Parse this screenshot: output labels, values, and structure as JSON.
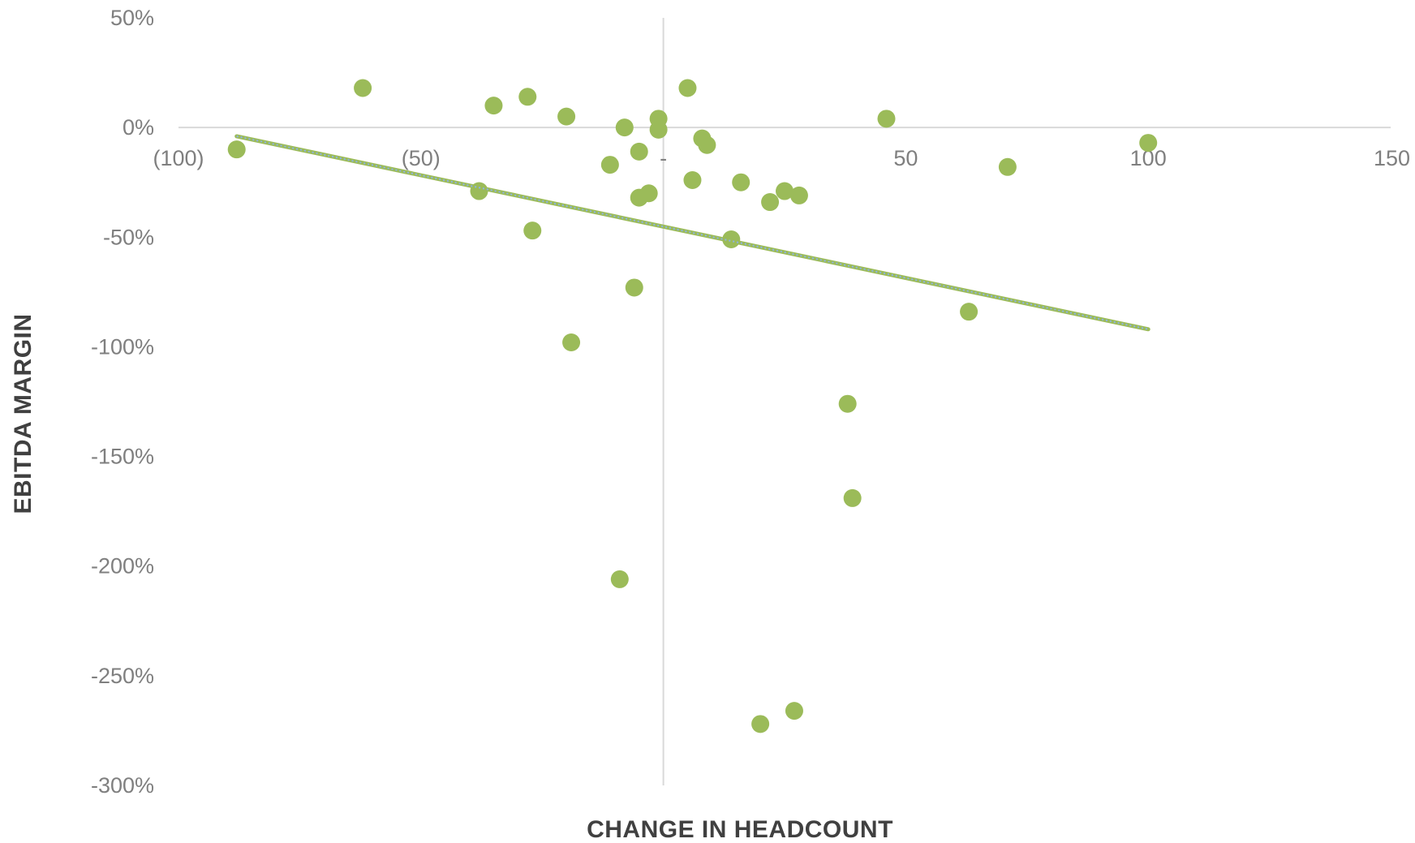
{
  "chart_data": {
    "type": "scatter",
    "title": "",
    "xlabel": "CHANGE IN HEADCOUNT",
    "ylabel": "EBITDA MARGIN",
    "xlim": [
      -100,
      150
    ],
    "ylim": [
      -300,
      50
    ],
    "x_ticks": [
      {
        "value": -100,
        "label": "(100)"
      },
      {
        "value": -50,
        "label": "(50)"
      },
      {
        "value": 0,
        "label": "-"
      },
      {
        "value": 50,
        "label": "50"
      },
      {
        "value": 100,
        "label": "100"
      },
      {
        "value": 150,
        "label": "150"
      }
    ],
    "y_ticks": [
      {
        "value": 50,
        "label": "50%"
      },
      {
        "value": 0,
        "label": "0%"
      },
      {
        "value": -50,
        "label": "-50%"
      },
      {
        "value": -100,
        "label": "-100%"
      },
      {
        "value": -150,
        "label": "-150%"
      },
      {
        "value": -200,
        "label": "-200%"
      },
      {
        "value": -250,
        "label": "-250%"
      },
      {
        "value": -300,
        "label": "-300%"
      }
    ],
    "grid": false,
    "legend": "none",
    "point_color": "#9bbb59",
    "trendline_color": "#9bbb59",
    "trendline_inner_color": "#8db3e2",
    "trendline": {
      "x1": -88,
      "y1": -4,
      "x2": 100,
      "y2": -92
    },
    "points": [
      {
        "x": -88,
        "y": -10
      },
      {
        "x": -62,
        "y": 18
      },
      {
        "x": -38,
        "y": -29
      },
      {
        "x": -35,
        "y": 10
      },
      {
        "x": -28,
        "y": 14
      },
      {
        "x": -27,
        "y": -47
      },
      {
        "x": -20,
        "y": 5
      },
      {
        "x": -19,
        "y": -98
      },
      {
        "x": -11,
        "y": -17
      },
      {
        "x": -9,
        "y": -206
      },
      {
        "x": -8,
        "y": 0
      },
      {
        "x": -6,
        "y": -73
      },
      {
        "x": -5,
        "y": -32
      },
      {
        "x": -5,
        "y": -11
      },
      {
        "x": -3,
        "y": -30
      },
      {
        "x": -1,
        "y": 4
      },
      {
        "x": -1,
        "y": -1
      },
      {
        "x": 5,
        "y": 18
      },
      {
        "x": 6,
        "y": -24
      },
      {
        "x": 8,
        "y": -5
      },
      {
        "x": 9,
        "y": -8
      },
      {
        "x": 14,
        "y": -51
      },
      {
        "x": 16,
        "y": -25
      },
      {
        "x": 20,
        "y": -272
      },
      {
        "x": 22,
        "y": -34
      },
      {
        "x": 25,
        "y": -29
      },
      {
        "x": 27,
        "y": -266
      },
      {
        "x": 28,
        "y": -31
      },
      {
        "x": 38,
        "y": -126
      },
      {
        "x": 39,
        "y": -169
      },
      {
        "x": 46,
        "y": 4
      },
      {
        "x": 63,
        "y": -84
      },
      {
        "x": 71,
        "y": -18
      },
      {
        "x": 100,
        "y": -7
      }
    ]
  }
}
